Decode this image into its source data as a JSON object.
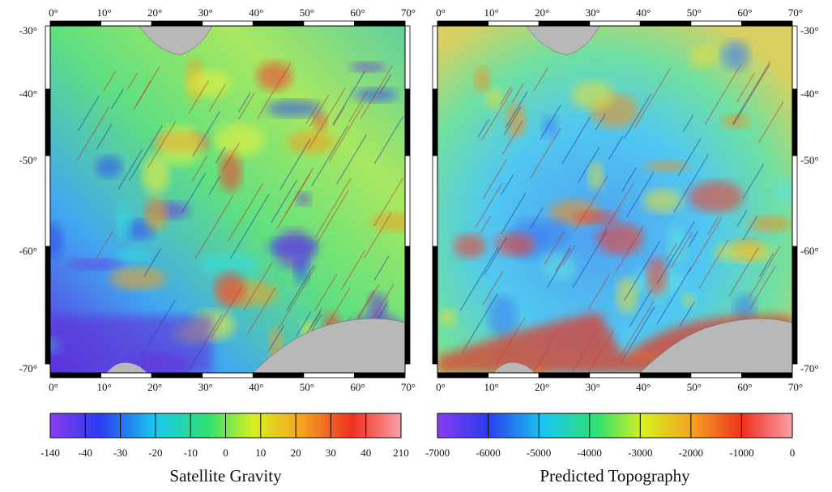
{
  "panels": [
    {
      "title": "Satellite Gravity",
      "top_ticks": [
        "0°",
        "10°",
        "20°",
        "30°",
        "40°",
        "50°",
        "60°",
        "70°"
      ],
      "bottom_ticks": [
        "0°",
        "10°",
        "20°",
        "30°",
        "40°",
        "50°",
        "60°",
        "70°"
      ],
      "lat_ticks": [
        "-30°",
        "-40°",
        "-50°",
        "-60°",
        "-70°"
      ],
      "colorbar_labels": [
        "-140",
        "-40",
        "-30",
        "-20",
        "-10",
        "0",
        "10",
        "20",
        "30",
        "40",
        "210"
      ]
    },
    {
      "title": "Predicted Topography",
      "top_ticks": [
        "0°",
        "10°",
        "20°",
        "30°",
        "40°",
        "50°",
        "60°",
        "70°"
      ],
      "bottom_ticks": [
        "0°",
        "10°",
        "20°",
        "30°",
        "40°",
        "50°",
        "60°",
        "70°"
      ],
      "lat_ticks": [
        "-30°",
        "-40°",
        "-50°",
        "-60°",
        "-70°"
      ],
      "colorbar_labels": [
        "-7000",
        "-6000",
        "-5000",
        "-4000",
        "-3000",
        "-2000",
        "-1000",
        "0"
      ]
    }
  ]
}
